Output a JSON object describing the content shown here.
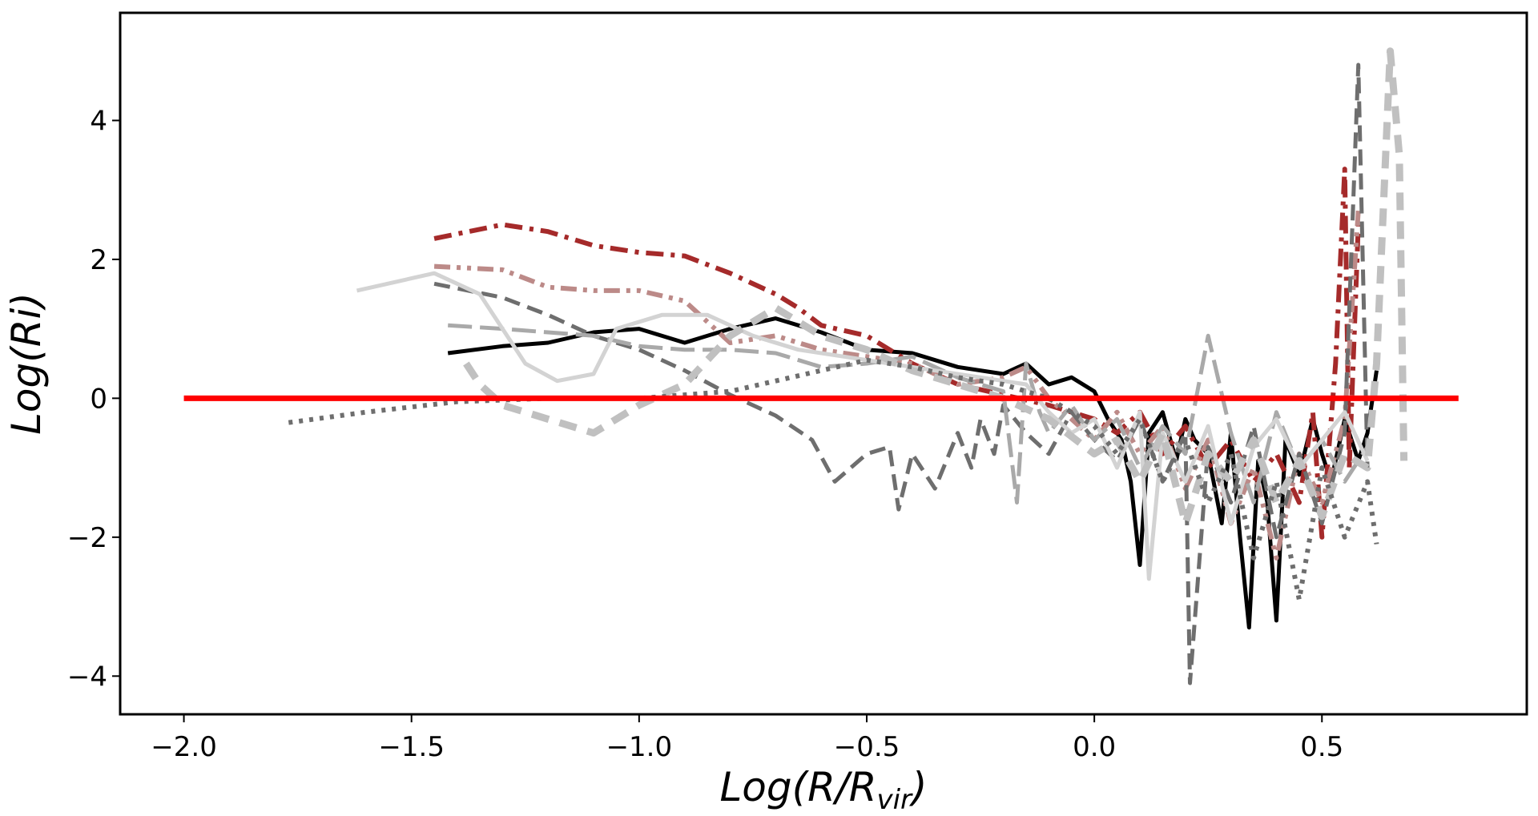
{
  "chart_data": {
    "type": "line",
    "title": "",
    "xlabel": "Log(R/R_vir)",
    "xlabel_parts": {
      "main": "Log(R/R",
      "sub": "vir",
      "close": ")"
    },
    "ylabel": "Log(Ri)",
    "xlim": [
      -2.14,
      0.95
    ],
    "ylim": [
      -4.55,
      5.55
    ],
    "xticks": [
      -2.0,
      -1.5,
      -1.0,
      -0.5,
      0.0,
      0.5
    ],
    "xtick_labels": [
      "−2.0",
      "−1.5",
      "−1.0",
      "−0.5",
      "0.0",
      "0.5"
    ],
    "yticks": [
      -4,
      -2,
      0,
      2,
      4
    ],
    "ytick_labels": [
      "−4",
      "−2",
      "0",
      "2",
      "4"
    ],
    "grid": false,
    "reference_line": {
      "name": "Ri = 1 (log 0)",
      "y": 0,
      "x": [
        -2.0,
        0.8
      ],
      "color": "#ff0000"
    },
    "series": [
      {
        "name": "black-solid",
        "color": "#000000",
        "dash": "solid",
        "x": [
          -1.42,
          -1.3,
          -1.2,
          -1.1,
          -1.0,
          -0.9,
          -0.8,
          -0.7,
          -0.6,
          -0.5,
          -0.4,
          -0.3,
          -0.2,
          -0.15,
          -0.1,
          -0.05,
          0.0,
          0.03,
          0.06,
          0.08,
          0.1,
          0.12,
          0.15,
          0.18,
          0.2,
          0.22,
          0.25,
          0.28,
          0.3,
          0.32,
          0.34,
          0.36,
          0.38,
          0.4,
          0.42,
          0.45,
          0.48,
          0.5,
          0.52,
          0.55,
          0.58,
          0.6,
          0.62
        ],
        "y": [
          0.65,
          0.75,
          0.8,
          0.95,
          1.0,
          0.8,
          1.0,
          1.15,
          0.95,
          0.7,
          0.65,
          0.45,
          0.35,
          0.5,
          0.2,
          0.3,
          0.1,
          -0.3,
          -0.6,
          -1.2,
          -2.4,
          -0.5,
          -0.2,
          -0.9,
          -0.3,
          -0.6,
          -0.8,
          -1.8,
          -0.5,
          -2.0,
          -3.3,
          -0.9,
          -1.5,
          -3.2,
          -0.6,
          -1.1,
          -0.3,
          -0.8,
          -1.2,
          -0.3,
          -0.9,
          -0.5,
          0.4
        ]
      },
      {
        "name": "darkred-dashdot",
        "color": "#a52a2a",
        "dash": "dashdot",
        "x": [
          -1.45,
          -1.3,
          -1.2,
          -1.1,
          -1.0,
          -0.9,
          -0.8,
          -0.7,
          -0.65,
          -0.6,
          -0.5,
          -0.4,
          -0.3,
          -0.2,
          -0.1,
          0.0,
          0.05,
          0.1,
          0.15,
          0.2,
          0.25,
          0.3,
          0.35,
          0.4,
          0.45,
          0.48,
          0.5,
          0.53,
          0.55,
          0.56,
          0.58
        ],
        "y": [
          2.3,
          2.5,
          2.4,
          2.2,
          2.1,
          2.05,
          1.8,
          1.5,
          1.3,
          1.05,
          0.9,
          0.5,
          0.2,
          0.05,
          -0.1,
          -0.3,
          -0.5,
          -0.2,
          -0.8,
          -0.4,
          -1.0,
          -0.6,
          -1.2,
          -0.8,
          -1.5,
          -0.2,
          -2.0,
          0.5,
          3.3,
          -1.0,
          2.5
        ]
      },
      {
        "name": "rosybrown-dashdotdot",
        "color": "#bc8a88",
        "dash": "dashdotdot",
        "x": [
          -1.45,
          -1.3,
          -1.2,
          -1.1,
          -1.0,
          -0.9,
          -0.8,
          -0.7,
          -0.6,
          -0.5,
          -0.4,
          -0.3,
          -0.2,
          -0.15,
          -0.1,
          0.0,
          0.05,
          0.1,
          0.15,
          0.2,
          0.25,
          0.3,
          0.35,
          0.4,
          0.45,
          0.5,
          0.55,
          0.58
        ],
        "y": [
          1.9,
          1.85,
          1.6,
          1.55,
          1.55,
          1.4,
          0.8,
          0.9,
          0.7,
          0.6,
          0.5,
          0.2,
          0.3,
          0.45,
          0.0,
          -0.6,
          -0.2,
          -0.8,
          -0.4,
          -1.3,
          -0.6,
          -1.8,
          -1.0,
          -2.3,
          -0.8,
          -1.5,
          -0.3,
          2.7
        ]
      },
      {
        "name": "dimgray-dashed",
        "color": "#6e6e6e",
        "dash": "dashed",
        "x": [
          -1.45,
          -1.3,
          -1.2,
          -1.1,
          -1.0,
          -0.9,
          -0.8,
          -0.7,
          -0.62,
          -0.57,
          -0.5,
          -0.45,
          -0.43,
          -0.4,
          -0.35,
          -0.3,
          -0.27,
          -0.25,
          -0.22,
          -0.2,
          -0.15,
          -0.1,
          -0.05,
          0.0,
          0.05,
          0.1,
          0.15,
          0.2,
          0.21,
          0.25,
          0.3,
          0.35,
          0.4,
          0.45,
          0.5,
          0.55,
          0.58,
          0.6
        ],
        "y": [
          1.65,
          1.45,
          1.2,
          0.9,
          0.7,
          0.4,
          0.05,
          -0.25,
          -0.6,
          -1.2,
          -0.8,
          -0.7,
          -1.6,
          -0.8,
          -1.3,
          -0.5,
          -1.0,
          -0.3,
          -0.8,
          -0.1,
          -0.5,
          -0.8,
          -0.2,
          -0.6,
          -0.9,
          -0.3,
          -1.2,
          -0.5,
          -4.1,
          -0.7,
          -1.5,
          -0.4,
          -2.0,
          -0.8,
          -1.8,
          -0.5,
          4.8,
          -1.0
        ]
      },
      {
        "name": "darkgray-longdash",
        "color": "#a9a9a9",
        "dash": "longdash",
        "x": [
          -1.42,
          -1.3,
          -1.2,
          -1.1,
          -1.0,
          -0.9,
          -0.8,
          -0.7,
          -0.6,
          -0.5,
          -0.4,
          -0.3,
          -0.2,
          -0.17,
          -0.15,
          -0.12,
          -0.1,
          -0.05,
          0.0,
          0.05,
          0.1,
          0.15,
          0.2,
          0.25,
          0.3,
          0.35,
          0.4,
          0.45,
          0.5,
          0.55,
          0.6
        ],
        "y": [
          1.05,
          1.0,
          0.95,
          0.9,
          0.75,
          0.7,
          0.7,
          0.65,
          0.45,
          0.5,
          0.6,
          0.3,
          0.1,
          -1.5,
          0.5,
          -0.2,
          -0.5,
          -0.1,
          -0.6,
          -0.3,
          -1.0,
          -0.4,
          -0.8,
          0.9,
          -0.5,
          -1.5,
          -0.2,
          -1.0,
          -0.6,
          -1.2,
          -0.7
        ]
      },
      {
        "name": "lightgray-solid",
        "color": "#d3d3d3",
        "dash": "solid",
        "x": [
          -1.62,
          -1.45,
          -1.35,
          -1.25,
          -1.18,
          -1.1,
          -1.05,
          -0.95,
          -0.85,
          -0.75,
          -0.65,
          -0.55,
          -0.45,
          -0.35,
          -0.25,
          -0.15,
          -0.1,
          -0.05,
          0.0,
          0.05,
          0.1,
          0.12,
          0.15,
          0.2,
          0.25,
          0.3,
          0.35,
          0.4,
          0.45,
          0.5,
          0.55,
          0.6
        ],
        "y": [
          1.55,
          1.8,
          1.5,
          0.5,
          0.25,
          0.35,
          1.0,
          1.2,
          1.2,
          0.9,
          0.7,
          0.6,
          0.5,
          0.4,
          0.3,
          0.2,
          -0.2,
          -0.5,
          -0.3,
          -1.0,
          -0.2,
          -2.6,
          -0.5,
          -1.2,
          -0.4,
          -1.8,
          -0.7,
          -0.3,
          -1.0,
          -0.6,
          -0.2,
          -0.9
        ]
      },
      {
        "name": "silver-thick-dashed",
        "color": "#c0c0c0",
        "dash": "thickdash",
        "x": [
          -1.38,
          -1.35,
          -1.3,
          -1.2,
          -1.1,
          -1.0,
          -0.9,
          -0.8,
          -0.7,
          -0.6,
          -0.5,
          -0.4,
          -0.3,
          -0.2,
          -0.1,
          0.0,
          0.05,
          0.1,
          0.15,
          0.2,
          0.25,
          0.3,
          0.35,
          0.4,
          0.45,
          0.5,
          0.55,
          0.6,
          0.62,
          0.65,
          0.67,
          0.68
        ],
        "y": [
          0.5,
          0.2,
          -0.1,
          -0.3,
          -0.5,
          -0.1,
          0.2,
          0.9,
          1.3,
          0.9,
          0.7,
          0.4,
          0.2,
          0.0,
          -0.3,
          -0.8,
          -0.6,
          -1.2,
          -0.5,
          -1.8,
          -0.8,
          -1.2,
          -0.6,
          -1.5,
          -0.9,
          -1.7,
          -0.8,
          -1.0,
          0.5,
          5.0,
          3.5,
          -0.9
        ]
      },
      {
        "name": "gray-dotted",
        "color": "#6e6e6e",
        "dash": "dotted",
        "x": [
          -1.77,
          -1.6,
          -1.4,
          -1.2,
          -1.0,
          -0.8,
          -0.6,
          -0.5,
          -0.4,
          -0.3,
          -0.2,
          -0.1,
          0.0,
          0.05,
          0.1,
          0.15,
          0.2,
          0.25,
          0.3,
          0.35,
          0.4,
          0.45,
          0.5,
          0.55,
          0.6,
          0.62
        ],
        "y": [
          -0.35,
          -0.2,
          -0.05,
          0.0,
          0.0,
          0.1,
          0.4,
          0.55,
          0.45,
          0.3,
          0.2,
          0.0,
          -0.4,
          -0.8,
          -0.3,
          -1.2,
          -0.6,
          -1.5,
          -0.8,
          -2.3,
          -1.2,
          -2.9,
          -1.0,
          -2.0,
          -1.2,
          -2.1
        ]
      }
    ]
  }
}
